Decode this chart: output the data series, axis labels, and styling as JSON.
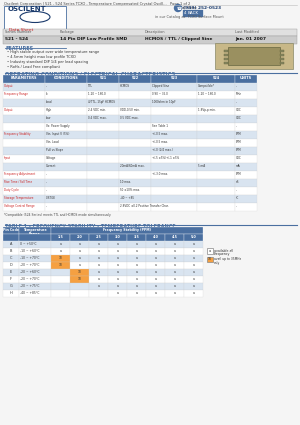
{
  "title_text": "Oscilent Corporation | 521 - 524 Series TCXO - Temperature Compensated Crystal Oscill...   Page 1 of 2",
  "company": "OSCILENT",
  "datasheet_label": "Data Sheet",
  "phone_label": "Toll Free:",
  "phone_num": "(949) 252-0523",
  "back_label": "BACK",
  "product_type": "in our Catalog as: TCXO Surface Mount",
  "series_number": "521 - 524",
  "package": "14 Pin DIP Low Profile SMD",
  "description": "HCMOS / TTL / Clipped Sine",
  "last_modified": "Jan. 01 2007",
  "features_title": "FEATURES",
  "features": [
    "High stable output over wide temperature range",
    "4.5mm height max low profile TCXO",
    "Industry standard DIP 1/4 per lead spacing",
    "RoHs / Lead Free compliant"
  ],
  "op_cond_title": "OPERATING CONDITIONS / ELECTRICAL CHARACTERISTICS",
  "table1_headers": [
    "PARAMETERS",
    "CONDITIONS",
    "521",
    "522",
    "523",
    "524",
    "UNITS"
  ],
  "table1_col_widths": [
    42,
    42,
    32,
    32,
    46,
    38,
    22
  ],
  "table1_rows": [
    [
      "Output",
      "-",
      "TTL",
      "HCMOS",
      "Clipped Sine",
      "Compatible*",
      "-"
    ],
    [
      "Frequency Range",
      "fo",
      "1.20 ~ 160.0",
      "",
      "0.90 ~ 35.0",
      "1.20 ~ 160.0",
      "MHz"
    ],
    [
      "",
      "Load",
      "4/TTL, 15pF HCMOS",
      "",
      "1000ohm in 10pF",
      "",
      "-"
    ],
    [
      "Output",
      "High",
      "2.4 VDC min.",
      "VDD-0.5V min.",
      "",
      "1.8Vp-p min.",
      "VDC"
    ],
    [
      "",
      "Low",
      "0.4 VDC max.",
      "0.5 VDC max.",
      "",
      "",
      "VDC"
    ],
    [
      "",
      "Vo. Power Supply",
      "",
      "",
      "See Table 1",
      "",
      "-"
    ],
    [
      "Frequency Stability",
      "Vin. Input V (5%)",
      "",
      "",
      "+/-0.5 max.",
      "",
      "PPM"
    ],
    [
      "",
      "Vin. Load",
      "",
      "",
      "+/-0.5 max.",
      "",
      "PPM"
    ],
    [
      "",
      "Pull vs Slope",
      "",
      "",
      "+/-0 (2/4 max.)",
      "",
      "PPM"
    ],
    [
      "Input",
      "Voltage",
      "",
      "",
      "+/-5 ±5%/+/-1 ±5%",
      "",
      "VDC"
    ],
    [
      "",
      "Current",
      "",
      "20mA/60mA max.",
      "",
      "5 mA",
      "mA"
    ],
    [
      "Frequency Adjustment",
      "-",
      "",
      "",
      "+/-3.0 max.",
      "",
      "PPM"
    ],
    [
      "Rise Time / Fall Time",
      "-",
      "",
      "10 max.",
      "",
      "",
      "nS"
    ],
    [
      "Duty Cycle",
      "-",
      "",
      "50 ±10% max.",
      "",
      "",
      "-"
    ],
    [
      "Storage Temperature",
      "C/STGE",
      "",
      "-40 ~ +85",
      "",
      "",
      "°C"
    ],
    [
      "Voltage Control Range",
      "-",
      "",
      "2.8VDC ±0.2 Positive Transfer Char.",
      "",
      "",
      "-"
    ]
  ],
  "compat_note": "*Compatible (524 Series) meets TTL and HCMOS mode simultaneously",
  "table2_title": "TABLE 1 - FREQUENCY STABILITY - TEMPERATURE TOLERANCE",
  "table2_col_header": "Frequency Stability (PPM)",
  "table2_pin_header": "Pin Code",
  "table2_temp_header": "Temperature\nRange",
  "table2_sub_headers": [
    "1.5",
    "2.0",
    "2.5",
    "3.0",
    "3.5",
    "4.0",
    "4.5",
    "5.0"
  ],
  "table2_rows": [
    [
      "A",
      "0 ~ +50°C",
      "a",
      "a",
      "a",
      "a",
      "a",
      "a",
      "a",
      "a"
    ],
    [
      "B",
      "-10 ~ +60°C",
      "a",
      "a",
      "a",
      "a",
      "a",
      "a",
      "a",
      "a"
    ],
    [
      "C",
      "-10 ~ +70°C",
      "10",
      "a",
      "a",
      "a",
      "a",
      "a",
      "a",
      "a"
    ],
    [
      "D",
      "-20 ~ +70°C",
      "10",
      "a",
      "a",
      "a",
      "a",
      "a",
      "a",
      "a"
    ],
    [
      "E",
      "-20 ~ +60°C",
      "",
      "10",
      "a",
      "a",
      "a",
      "a",
      "a",
      "a"
    ],
    [
      "F",
      "-20 ~ +70°C",
      "",
      "10",
      "a",
      "a",
      "a",
      "a",
      "a",
      "a"
    ],
    [
      "G",
      "-20 ~ +75°C",
      "",
      "",
      "a",
      "a",
      "a",
      "a",
      "a",
      "a"
    ],
    [
      "H",
      "-40 ~ +85°C",
      "",
      "",
      "",
      "a",
      "a",
      "a",
      "a",
      "a"
    ]
  ],
  "legend_a_color": "#ffffff",
  "legend_10_color": "#f5a042",
  "legend_a_text": "available all\nFrequency",
  "legend_10_text": "avail up to 35MHz\nonly",
  "header_bg": "#4a6fa0",
  "header_fg": "#ffffff",
  "row_bg_alt": "#d9e4f0",
  "row_bg": "#ffffff",
  "title_color": "#4a6fa0",
  "bg_color": "#f5f5f5",
  "bar_bg1": "#e0e0e0",
  "bar_bg2": "#cccccc",
  "red_color": "#cc2222"
}
